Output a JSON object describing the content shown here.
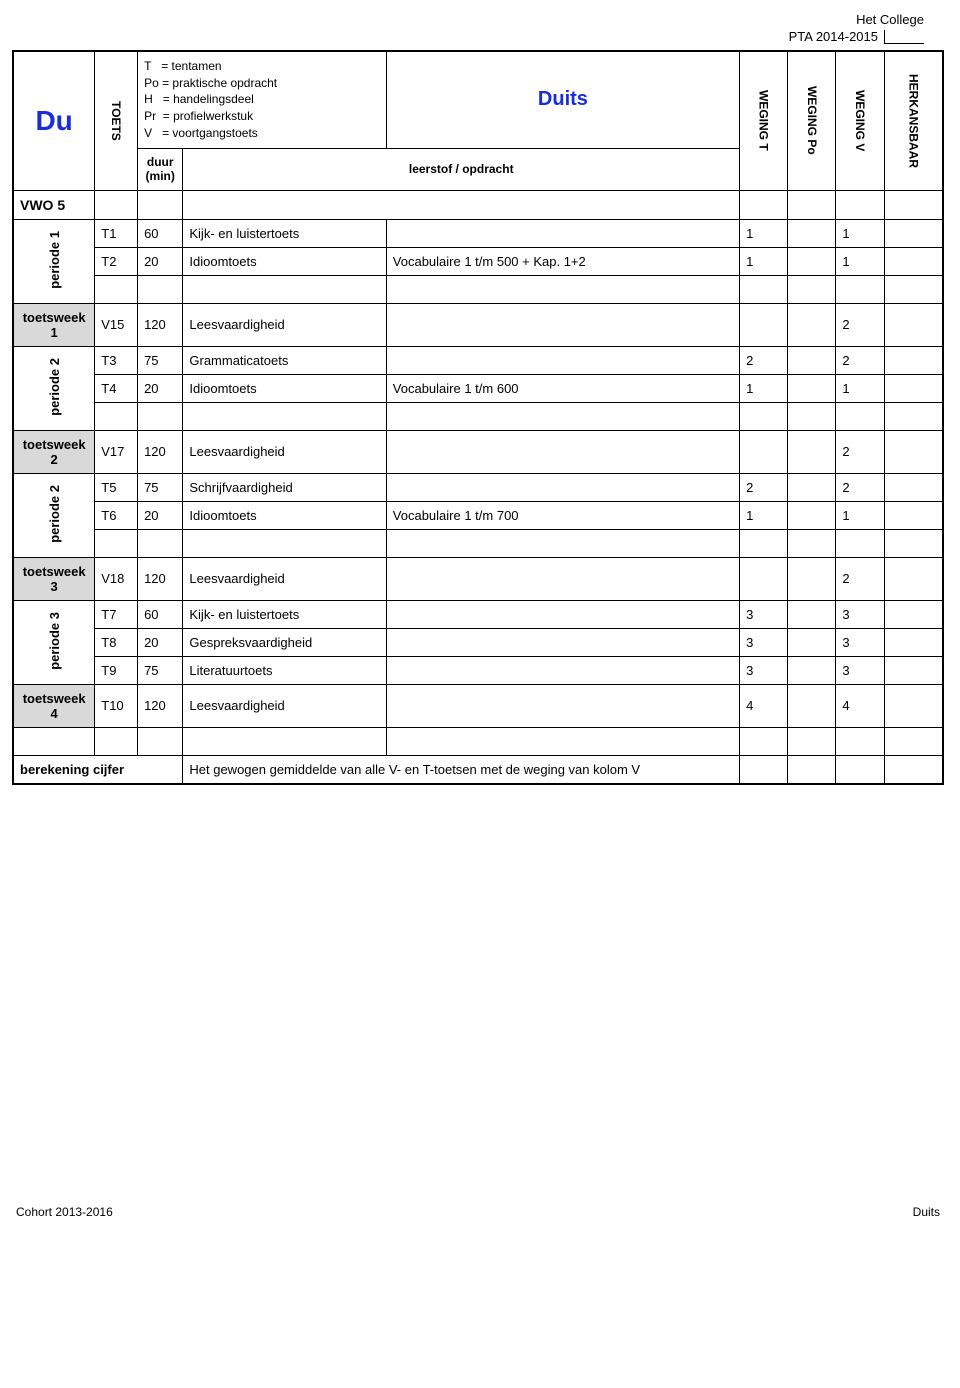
{
  "header": {
    "school": "Het College",
    "pta": "PTA 2014-2015"
  },
  "subject": {
    "code": "Du",
    "name": "Duits"
  },
  "legend": {
    "T": "= tentamen",
    "Po": "= praktische opdracht",
    "H": "= handelingsdeel",
    "Pr": "= profielwerkstuk",
    "V": "= voortgangstoets"
  },
  "columns": {
    "toets": "TOETS",
    "duur": "duur\n(min)",
    "leerstof": "leerstof / opdracht",
    "wt": "WEGING T",
    "wpo": "WEGING Po",
    "wv": "WEGING V",
    "hk": "HERKANSBAAR"
  },
  "level": "VWO 5",
  "periods": {
    "p1": "periode 1",
    "p2": "periode 2",
    "p2b": "periode 2",
    "p3": "periode 3"
  },
  "toetsweken": {
    "tw1": "toetsweek 1",
    "tw2": "toetsweek 2",
    "tw3": "toetsweek 3",
    "tw4": "toetsweek 4"
  },
  "rows": {
    "t1": {
      "code": "T1",
      "duur": "60",
      "desc": "Kijk- en luistertoets",
      "leerstof": "",
      "wt": "1",
      "wpo": "",
      "wv": "1",
      "hk": ""
    },
    "t2": {
      "code": "T2",
      "duur": "20",
      "desc": "Idioomtoets",
      "leerstof": "Vocabulaire 1 t/m 500 + Kap. 1+2",
      "wt": "1",
      "wpo": "",
      "wv": "1",
      "hk": ""
    },
    "v15": {
      "code": "V15",
      "duur": "120",
      "desc": "Leesvaardigheid",
      "leerstof": "",
      "wt": "",
      "wpo": "",
      "wv": "2",
      "hk": ""
    },
    "t3": {
      "code": "T3",
      "duur": "75",
      "desc": "Grammaticatoets",
      "leerstof": "",
      "wt": "2",
      "wpo": "",
      "wv": "2",
      "hk": ""
    },
    "t4": {
      "code": "T4",
      "duur": "20",
      "desc": "Idioomtoets",
      "leerstof": "Vocabulaire 1 t/m 600",
      "wt": "1",
      "wpo": "",
      "wv": "1",
      "hk": ""
    },
    "v17": {
      "code": "V17",
      "duur": "120",
      "desc": "Leesvaardigheid",
      "leerstof": "",
      "wt": "",
      "wpo": "",
      "wv": "2",
      "hk": ""
    },
    "t5": {
      "code": "T5",
      "duur": "75",
      "desc": "Schrijfvaardigheid",
      "leerstof": "",
      "wt": "2",
      "wpo": "",
      "wv": "2",
      "hk": ""
    },
    "t6": {
      "code": "T6",
      "duur": "20",
      "desc": "Idioomtoets",
      "leerstof": "Vocabulaire 1 t/m 700",
      "wt": "1",
      "wpo": "",
      "wv": "1",
      "hk": ""
    },
    "v18": {
      "code": "V18",
      "duur": "120",
      "desc": "Leesvaardigheid",
      "leerstof": "",
      "wt": "",
      "wpo": "",
      "wv": "2",
      "hk": ""
    },
    "t7": {
      "code": "T7",
      "duur": "60",
      "desc": "Kijk- en luistertoets",
      "leerstof": "",
      "wt": "3",
      "wpo": "",
      "wv": "3",
      "hk": ""
    },
    "t8": {
      "code": "T8",
      "duur": "20",
      "desc": "Gespreksvaardigheid",
      "leerstof": "",
      "wt": "3",
      "wpo": "",
      "wv": "3",
      "hk": ""
    },
    "t9": {
      "code": "T9",
      "duur": "75",
      "desc": "Literatuurtoets",
      "leerstof": "",
      "wt": "3",
      "wpo": "",
      "wv": "3",
      "hk": ""
    },
    "t10": {
      "code": "T10",
      "duur": "120",
      "desc": "Leesvaardigheid",
      "leerstof": "",
      "wt": "4",
      "wpo": "",
      "wv": "4",
      "hk": ""
    }
  },
  "berekening": {
    "label": "berekening cijfer",
    "text": "Het gewogen gemiddelde van alle V- en T-toetsen met de weging van kolom V"
  },
  "footer": {
    "left": "Cohort 2013-2016",
    "right": "Duits"
  }
}
